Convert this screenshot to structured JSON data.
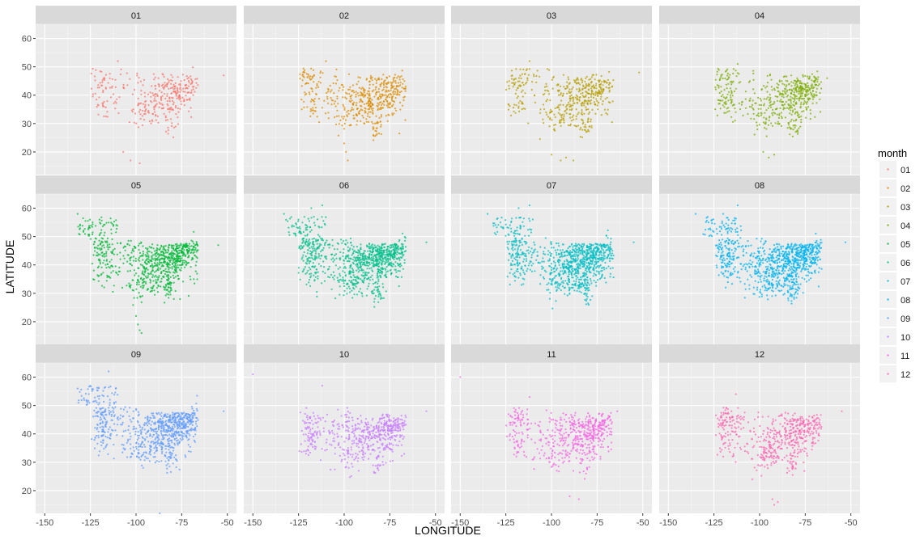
{
  "chart_data": {
    "type": "scatter",
    "layout": "facet_wrap",
    "xlabel": "LONGITUDE",
    "ylabel": "LATITUDE",
    "xlim": [
      -155,
      -45
    ],
    "ylim": [
      12,
      65
    ],
    "x_ticks": [
      -150,
      -125,
      -100,
      -75,
      -50
    ],
    "y_ticks": [
      20,
      30,
      40,
      50,
      60
    ],
    "grid": true,
    "legend": {
      "title": "month",
      "position": "right",
      "entries": [
        "01",
        "02",
        "03",
        "04",
        "05",
        "06",
        "07",
        "08",
        "09",
        "10",
        "11",
        "12"
      ]
    },
    "panels": [
      {
        "label": "01",
        "color": "#F8766D",
        "density": 0.55,
        "outliers": [
          [
            -107,
            20
          ],
          [
            -103,
            17
          ],
          [
            -98,
            16
          ],
          [
            -110,
            52
          ],
          [
            -52,
            47
          ]
        ]
      },
      {
        "label": "02",
        "color": "#DE8C00",
        "density": 0.8,
        "outliers": [
          [
            -100,
            23
          ],
          [
            -99,
            20
          ],
          [
            -98,
            17
          ],
          [
            -110,
            52
          ],
          [
            -67,
            45
          ]
        ]
      },
      {
        "label": "03",
        "color": "#B79F00",
        "density": 0.75,
        "outliers": [
          [
            -100,
            19
          ],
          [
            -95,
            17
          ],
          [
            -92,
            18
          ],
          [
            -88,
            17
          ],
          [
            -112,
            52
          ],
          [
            -52,
            48
          ]
        ]
      },
      {
        "label": "04",
        "color": "#7CAE00",
        "density": 0.85,
        "outliers": [
          [
            -98,
            20
          ],
          [
            -95,
            18
          ],
          [
            -92,
            19
          ],
          [
            -112,
            51
          ],
          [
            -63,
            46
          ]
        ]
      },
      {
        "label": "05",
        "color": "#00BA38",
        "density": 1.2,
        "outliers": [
          [
            -132,
            58
          ],
          [
            -120,
            56
          ],
          [
            -99,
            19
          ],
          [
            -98,
            17
          ],
          [
            -97,
            16
          ],
          [
            -100,
            22
          ],
          [
            -90,
            31
          ],
          [
            -55,
            47
          ]
        ]
      },
      {
        "label": "06",
        "color": "#00C08B",
        "density": 1.4,
        "outliers": [
          [
            -133,
            58
          ],
          [
            -125,
            56
          ],
          [
            -118,
            60
          ],
          [
            -112,
            61
          ],
          [
            -90,
            29
          ],
          [
            -55,
            48
          ]
        ]
      },
      {
        "label": "07",
        "color": "#00BFC4",
        "density": 1.4,
        "outliers": [
          [
            -135,
            58
          ],
          [
            -128,
            55
          ],
          [
            -118,
            60
          ],
          [
            -112,
            61
          ],
          [
            -90,
            30
          ],
          [
            -55,
            48
          ]
        ]
      },
      {
        "label": "08",
        "color": "#00B4F0",
        "density": 1.4,
        "outliers": [
          [
            -135,
            58
          ],
          [
            -128,
            55
          ],
          [
            -120,
            58
          ],
          [
            -112,
            61
          ],
          [
            -88,
            31
          ],
          [
            -53,
            48
          ]
        ]
      },
      {
        "label": "09",
        "color": "#619CFF",
        "density": 1.2,
        "outliers": [
          [
            -132,
            56
          ],
          [
            -125,
            57
          ],
          [
            -115,
            62
          ],
          [
            -95,
            32
          ],
          [
            -87,
            12
          ],
          [
            -52,
            48
          ]
        ]
      },
      {
        "label": "10",
        "color": "#C77CFF",
        "density": 0.9,
        "outliers": [
          [
            -150,
            61
          ],
          [
            -112,
            57
          ],
          [
            -105,
            33
          ],
          [
            -92,
            27
          ],
          [
            -55,
            48
          ]
        ]
      },
      {
        "label": "11",
        "color": "#F564E3",
        "density": 0.85,
        "outliers": [
          [
            -150,
            60
          ],
          [
            -112,
            53
          ],
          [
            -90,
            18
          ],
          [
            -85,
            17
          ],
          [
            -88,
            27
          ],
          [
            -64,
            48
          ]
        ]
      },
      {
        "label": "12",
        "color": "#FF64B0",
        "density": 0.85,
        "outliers": [
          [
            -113,
            54
          ],
          [
            -104,
            24
          ],
          [
            -93,
            17
          ],
          [
            -92,
            15
          ],
          [
            -90,
            16
          ],
          [
            -55,
            48
          ]
        ]
      }
    ]
  },
  "colors": {
    "panel_bg": "#EBEBEB",
    "strip_bg": "#D9D9D9",
    "grid_major": "#FFFFFF",
    "axis_text": "#4D4D4D",
    "axis_title": "#000000"
  }
}
